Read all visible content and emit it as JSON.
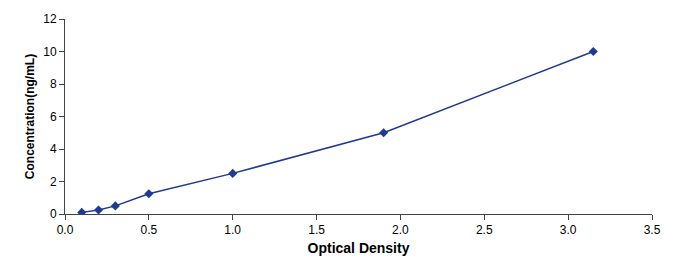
{
  "chart_data": {
    "type": "line",
    "x": [
      0.1,
      0.2,
      0.3,
      0.5,
      1.0,
      1.9,
      3.15
    ],
    "values": [
      0.1,
      0.25,
      0.5,
      1.25,
      2.5,
      5.0,
      10.0
    ],
    "color": "#1f3a8f",
    "marker": "diamond",
    "line_style": "solid",
    "xlabel": "Optical Density",
    "ylabel": "Concentration(ng/mL)",
    "xlim": [
      0,
      3.5
    ],
    "ylim": [
      0,
      12
    ],
    "xticks": [
      {
        "value": 0,
        "label": "0.0"
      },
      0.5,
      {
        "value": 1,
        "label": "1.0"
      },
      1.5,
      {
        "value": 2,
        "label": "2.0"
      },
      2.5,
      {
        "value": 3,
        "label": "3.0"
      },
      3.5
    ],
    "yticks": [
      0,
      2,
      4,
      6,
      8,
      10,
      12
    ],
    "grid": false
  }
}
